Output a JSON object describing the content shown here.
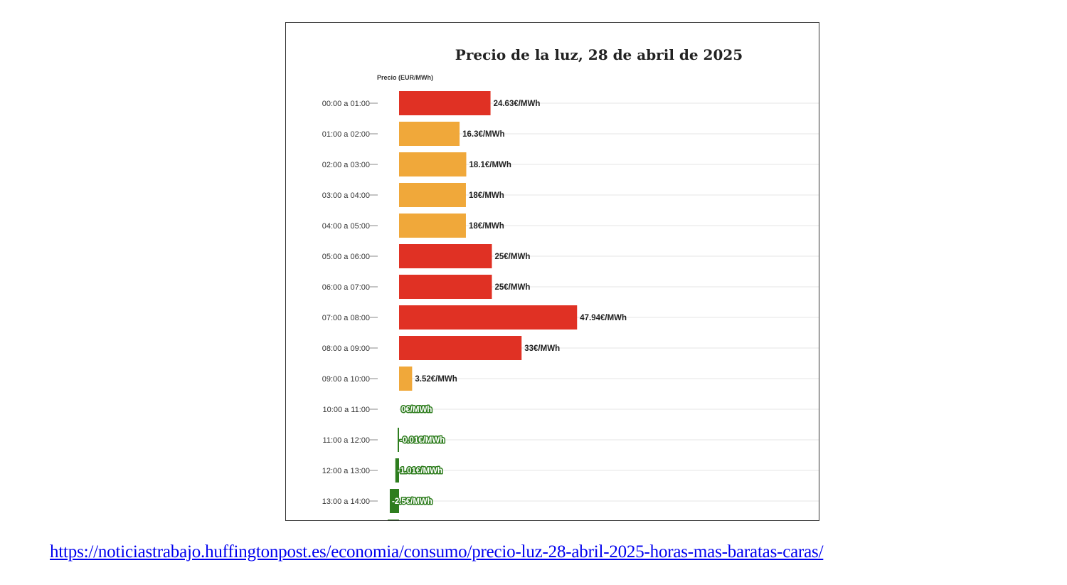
{
  "chart_data": {
    "type": "bar",
    "orientation": "horizontal",
    "title": "Precio de la luz, 28 de abril de 2025",
    "ylabel": "Precio (EUR/MWh)",
    "categories": [
      "00:00 a 01:00",
      "01:00 a 02:00",
      "02:00 a 03:00",
      "03:00 a 04:00",
      "04:00 a 05:00",
      "05:00 a 06:00",
      "06:00 a 07:00",
      "07:00 a 08:00",
      "08:00 a 09:00",
      "09:00 a 10:00",
      "10:00 a 11:00",
      "11:00 a 12:00",
      "12:00 a 13:00",
      "13:00 a 14:00"
    ],
    "values": [
      24.63,
      16.3,
      18.1,
      18,
      18,
      25,
      25,
      47.94,
      33,
      3.52,
      0,
      -0.01,
      -1.01,
      -2.5
    ],
    "labels": [
      "24.63€/MWh",
      "16.3€/MWh",
      "18.1€/MWh",
      "18€/MWh",
      "18€/MWh",
      "25€/MWh",
      "25€/MWh",
      "47.94€/MWh",
      "33€/MWh",
      "3.52€/MWh",
      "0€/MWh",
      "-0.01€/MWh",
      "-1.01€/MWh",
      "-2.5€/MWh"
    ],
    "colors": {
      "high": "#e03124",
      "medium": "#f0a83a",
      "low": "#2e7d1e",
      "grid": "#e6e6e6",
      "tick": "#888888"
    },
    "bar_levels": [
      "high",
      "medium",
      "medium",
      "medium",
      "medium",
      "high",
      "high",
      "high",
      "high",
      "medium",
      "low",
      "low",
      "low",
      "low"
    ],
    "grid": true,
    "legend": "none",
    "truncated": true
  },
  "source": {
    "url": "https://noticiastrabajo.huffingtonpost.es/economia/consumo/precio-luz-28-abril-2025-horas-mas-baratas-caras/"
  }
}
